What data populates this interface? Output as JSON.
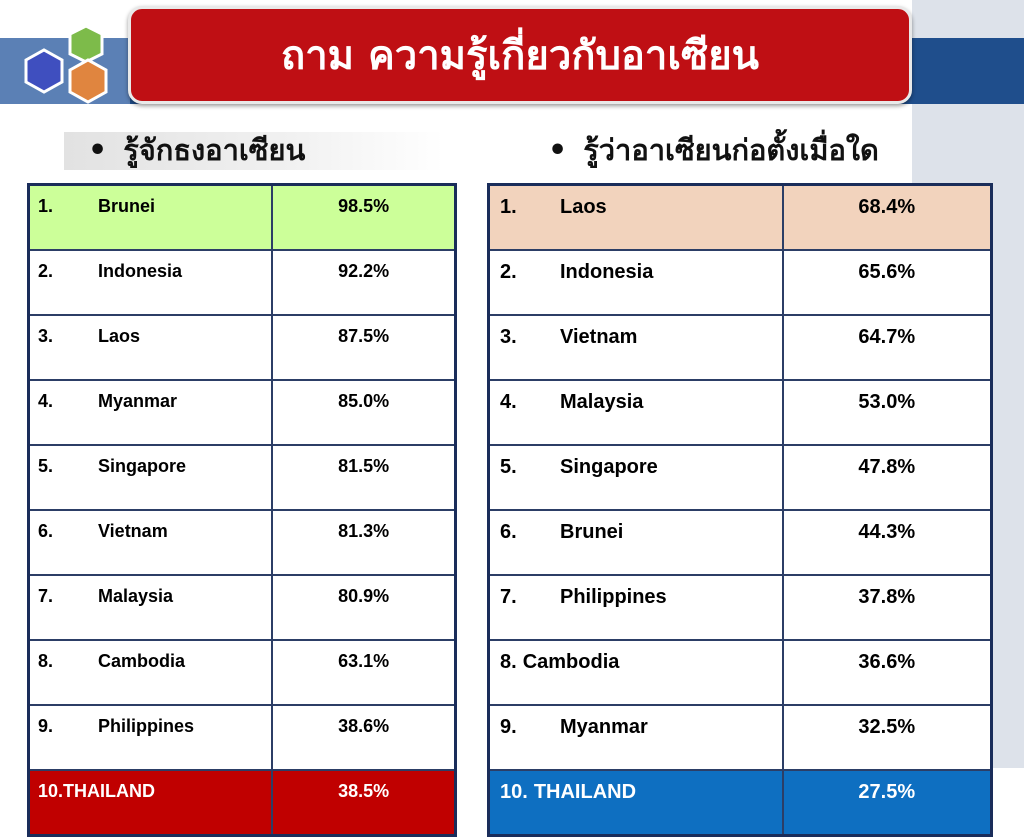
{
  "title": "ถาม ความรู้เกี่ยวกับอาเซียน",
  "left_section": {
    "heading": "รู้จักธงอาเซียน",
    "rows": [
      {
        "rank": "1.",
        "name": "Brunei",
        "value": "98.5%"
      },
      {
        "rank": "2.",
        "name": "Indonesia",
        "value": "92.2%"
      },
      {
        "rank": "3.",
        "name": "Laos",
        "value": "87.5%"
      },
      {
        "rank": "4.",
        "name": "Myanmar",
        "value": "85.0%"
      },
      {
        "rank": "5.",
        "name": "Singapore",
        "value": "81.5%"
      },
      {
        "rank": "6.",
        "name": "Vietnam",
        "value": "81.3%"
      },
      {
        "rank": "7.",
        "name": "Malaysia",
        "value": "80.9%"
      },
      {
        "rank": "8.",
        "name": "Cambodia",
        "value": "63.1%"
      },
      {
        "rank": "9.",
        "name": "Philippines",
        "value": "38.6%"
      },
      {
        "rank": "10.",
        "name": "THAILAND",
        "value": "38.5%"
      }
    ]
  },
  "right_section": {
    "heading": "รู้ว่าอาเซียนก่อตั้งเมื่อใด",
    "rows": [
      {
        "rank": "1.",
        "name": "Laos",
        "value": "68.4%"
      },
      {
        "rank": "2.",
        "name": "Indonesia",
        "value": "65.6%"
      },
      {
        "rank": "3.",
        "name": "Vietnam",
        "value": "64.7%"
      },
      {
        "rank": "4.",
        "name": "Malaysia",
        "value": "53.0%"
      },
      {
        "rank": "5.",
        "name": "Singapore",
        "value": "47.8%"
      },
      {
        "rank": "6.",
        "name": "Brunei",
        "value": "44.3%"
      },
      {
        "rank": "7.",
        "name": "Philippines",
        "value": "37.8%"
      },
      {
        "rank": "8.",
        "name": "Cambodia",
        "value": "36.6%"
      },
      {
        "rank": "9.",
        "name": "Myanmar",
        "value": "32.5%"
      },
      {
        "rank": "10.",
        "name": "THAILAND",
        "value": "27.5%"
      }
    ]
  },
  "colors": {
    "title_bg": "#bf0f14",
    "left_highlight_top": "#ccff99",
    "left_highlight_bottom": "#c00000",
    "right_highlight_top": "#f2d3bd",
    "right_highlight_bottom": "#0e6fc1",
    "header_bar": "#1f4e8c"
  },
  "icons": {
    "logo": "hexagon-cluster-icon",
    "decoration": "hexagon-outline-icon"
  }
}
